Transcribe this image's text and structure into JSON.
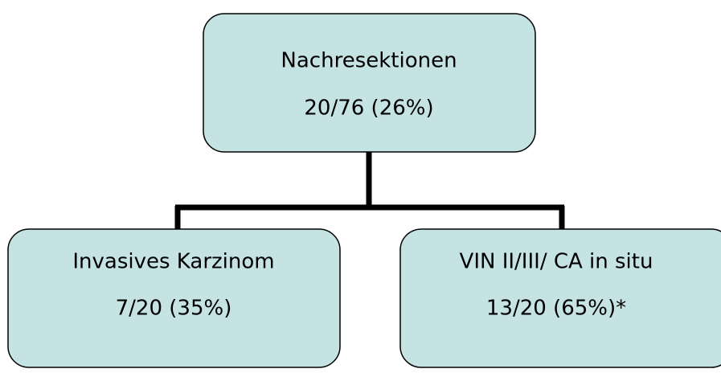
{
  "nodes": [
    {
      "label": "Nachresektionen",
      "value": "20/76 (26%)"
    },
    {
      "label": "Invasives Karzinom",
      "value": "7/20 (35%)"
    },
    {
      "label": "VIN II/III/ CA in situ",
      "value": "13/20 (65%)*"
    }
  ]
}
